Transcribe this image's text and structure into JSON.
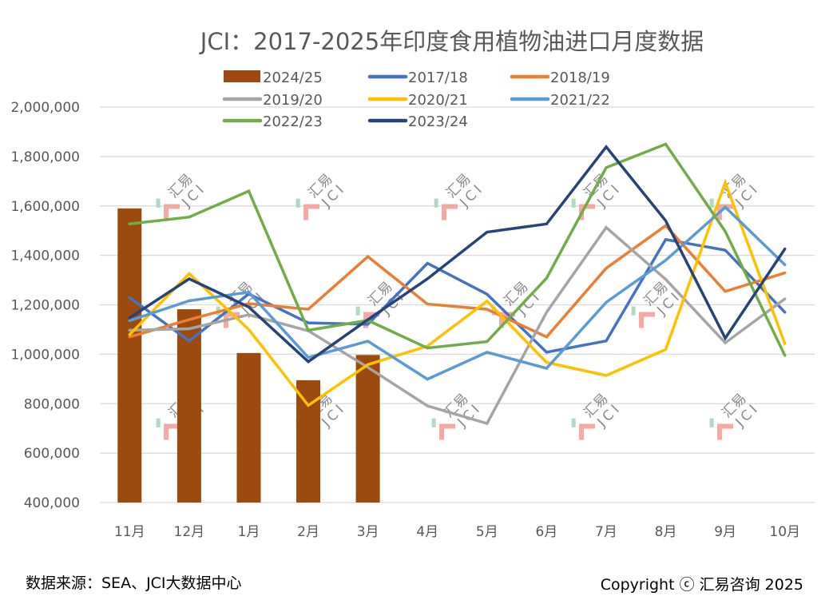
{
  "chart_data": {
    "type": "bar+line",
    "title": "JCI：2017-2025年印度食用植物油进口月度数据",
    "xlabel": "",
    "ylabel": "",
    "categories": [
      "11月",
      "12月",
      "1月",
      "2月",
      "3月",
      "4月",
      "5月",
      "6月",
      "7月",
      "8月",
      "9月",
      "10月"
    ],
    "ylim": [
      400000,
      2000000
    ],
    "yticks": [
      400000,
      600000,
      800000,
      1000000,
      1200000,
      1400000,
      1600000,
      1800000,
      2000000
    ],
    "ytick_labels": [
      "400,000",
      "600,000",
      "800,000",
      "1,000,000",
      "1,200,000",
      "1,400,000",
      "1,600,000",
      "1,800,000",
      "2,000,000"
    ],
    "grid": true,
    "legend_position": "top",
    "bar_series": {
      "name": "2024/25",
      "color": "#9C4A0E",
      "values": [
        1590000,
        1182000,
        1005000,
        895000,
        997000,
        null,
        null,
        null,
        null,
        null,
        null,
        null
      ]
    },
    "series": [
      {
        "name": "2017/18",
        "color": "#4472C4",
        "values": [
          1229000,
          1054000,
          1244000,
          1127000,
          1121000,
          1368000,
          1243000,
          1008000,
          1054000,
          1464000,
          1421000,
          1170000
        ]
      },
      {
        "name": "2018/19",
        "color": "#ED7D31",
        "values": [
          1070000,
          1140000,
          1205000,
          1182000,
          1395000,
          1203000,
          1182000,
          1070000,
          1348000,
          1520000,
          1254000,
          1329000
        ]
      },
      {
        "name": "2019/20",
        "color": "#A5A5A5",
        "values": [
          1097000,
          1103000,
          1160000,
          1095000,
          947000,
          791000,
          720000,
          1170000,
          1513000,
          1303000,
          1046000,
          1224000
        ]
      },
      {
        "name": "2020/21",
        "color": "#FFC000",
        "values": [
          1079000,
          1326000,
          1100000,
          793000,
          958000,
          1033000,
          1215000,
          967000,
          914000,
          1019000,
          1695000,
          1043000
        ]
      },
      {
        "name": "2021/22",
        "color": "#5B9BD5",
        "values": [
          1136000,
          1216000,
          1251000,
          987000,
          1053000,
          899000,
          1008000,
          943000,
          1210000,
          1380000,
          1595000,
          1362000
        ]
      },
      {
        "name": "2022/23",
        "color": "#70AD47",
        "values": [
          1527000,
          1555000,
          1660000,
          1097000,
          1137000,
          1025000,
          1051000,
          1308000,
          1755000,
          1850000,
          1497000,
          995000
        ]
      },
      {
        "name": "2023/24",
        "color": "#264478",
        "values": [
          1147000,
          1305000,
          1191000,
          970000,
          1140000,
          1305000,
          1494000,
          1527000,
          1839000,
          1540000,
          1065000,
          1426000
        ]
      }
    ],
    "legend": [
      "2024/25",
      "2017/18",
      "2018/19",
      "2019/20",
      "2020/21",
      "2021/22",
      "2022/23",
      "2023/24"
    ]
  },
  "footer": {
    "source": "数据来源：SEA、JCI大数据中心",
    "copyright": "Copyright ⓒ 汇易咨询 2025"
  },
  "watermark": {
    "line1": "汇易",
    "line2": "JCI"
  },
  "colors": {
    "gridline": "#D9D9D9",
    "text": "#595959",
    "watermark_red": "#F4A09A",
    "watermark_green": "#A9D8B8"
  }
}
